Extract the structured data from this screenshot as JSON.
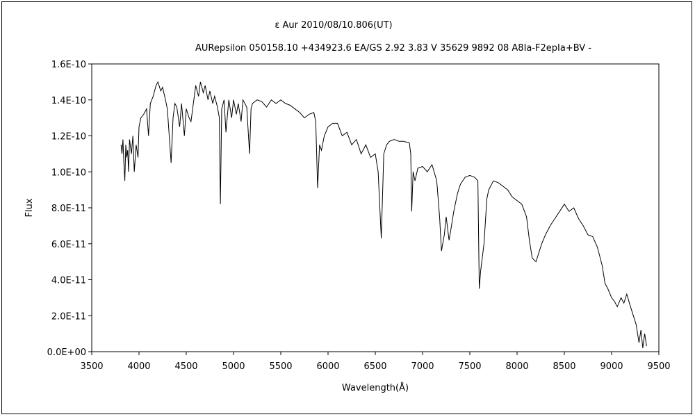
{
  "chart_data": {
    "type": "line",
    "title": "ε Aur   2010/08/10.806(UT)",
    "subtitle": "AURepsilon 050158.10 +434923.6 EA/GS 2.92 3.83 V 35629 9892 08 A8Ia-F2epIa+BV -",
    "xlabel": "Wavelength(Å)",
    "ylabel": "Flux",
    "xlim": [
      3500,
      9500
    ],
    "ylim": [
      0,
      1.6e-10
    ],
    "grid": false,
    "legend": "none",
    "line_color": "#000000",
    "x_ticks": [
      "3500",
      "4000",
      "4500",
      "5000",
      "5500",
      "6000",
      "6500",
      "7000",
      "7500",
      "8000",
      "8500",
      "9000",
      "9500"
    ],
    "y_ticks": [
      "0.0E+00",
      "2.0E-11",
      "4.0E-11",
      "6.0E-11",
      "8.0E-11",
      "1.0E-10",
      "1.2E-10",
      "1.4E-10",
      "1.6E-10"
    ],
    "series": [
      {
        "x": [
          3810,
          3820,
          3830,
          3840,
          3850,
          3860,
          3870,
          3880,
          3890,
          3900,
          3920,
          3935,
          3950,
          3970,
          3990,
          4000,
          4020,
          4050,
          4080,
          4101,
          4120,
          4150,
          4180,
          4200,
          4230,
          4250,
          4280,
          4300,
          4320,
          4340,
          4360,
          4380,
          4400,
          4430,
          4450,
          4480,
          4500,
          4530,
          4550,
          4580,
          4600,
          4630,
          4650,
          4680,
          4700,
          4730,
          4750,
          4780,
          4800,
          4830,
          4850,
          4861,
          4875,
          4900,
          4920,
          4950,
          4980,
          5000,
          5030,
          5050,
          5080,
          5100,
          5140,
          5170,
          5185,
          5200,
          5250,
          5300,
          5350,
          5400,
          5450,
          5500,
          5550,
          5600,
          5650,
          5700,
          5750,
          5800,
          5850,
          5870,
          5890,
          5910,
          5930,
          5960,
          6000,
          6050,
          6100,
          6150,
          6200,
          6250,
          6300,
          6350,
          6400,
          6450,
          6500,
          6530,
          6563,
          6590,
          6620,
          6650,
          6700,
          6750,
          6800,
          6860,
          6875,
          6885,
          6900,
          6920,
          6950,
          7000,
          7050,
          7100,
          7150,
          7180,
          7200,
          7230,
          7250,
          7280,
          7300,
          7330,
          7370,
          7400,
          7450,
          7500,
          7550,
          7585,
          7600,
          7615,
          7650,
          7680,
          7700,
          7750,
          7800,
          7850,
          7900,
          7950,
          8000,
          8050,
          8100,
          8130,
          8160,
          8200,
          8230,
          8260,
          8300,
          8350,
          8400,
          8450,
          8500,
          8550,
          8600,
          8650,
          8700,
          8750,
          8800,
          8850,
          8900,
          8930,
          8960,
          9000,
          9030,
          9060,
          9100,
          9130,
          9160,
          9200,
          9230,
          9260,
          9290,
          9310,
          9330,
          9350,
          9370
        ],
        "y": [
          1.15e-10,
          1.1e-10,
          1.18e-10,
          1.05e-10,
          9.5e-11,
          1.15e-10,
          1.08e-10,
          1.12e-10,
          1e-10,
          1.18e-10,
          1.1e-10,
          1.2e-10,
          1e-10,
          1.15e-10,
          1.08e-10,
          1.25e-10,
          1.3e-10,
          1.32e-10,
          1.35e-10,
          1.2e-10,
          1.38e-10,
          1.42e-10,
          1.48e-10,
          1.5e-10,
          1.45e-10,
          1.47e-10,
          1.4e-10,
          1.35e-10,
          1.2e-10,
          1.05e-10,
          1.3e-10,
          1.38e-10,
          1.36e-10,
          1.25e-10,
          1.38e-10,
          1.2e-10,
          1.35e-10,
          1.3e-10,
          1.28e-10,
          1.4e-10,
          1.48e-10,
          1.42e-10,
          1.5e-10,
          1.44e-10,
          1.48e-10,
          1.4e-10,
          1.45e-10,
          1.38e-10,
          1.42e-10,
          1.36e-10,
          1.3e-10,
          8.2e-11,
          1.35e-10,
          1.4e-10,
          1.22e-10,
          1.4e-10,
          1.3e-10,
          1.4e-10,
          1.32e-10,
          1.38e-10,
          1.28e-10,
          1.4e-10,
          1.36e-10,
          1.1e-10,
          1.35e-10,
          1.38e-10,
          1.4e-10,
          1.39e-10,
          1.36e-10,
          1.4e-10,
          1.38e-10,
          1.4e-10,
          1.38e-10,
          1.37e-10,
          1.35e-10,
          1.33e-10,
          1.3e-10,
          1.32e-10,
          1.33e-10,
          1.28e-10,
          9.1e-11,
          1.15e-10,
          1.12e-10,
          1.2e-10,
          1.25e-10,
          1.27e-10,
          1.27e-10,
          1.2e-10,
          1.22e-10,
          1.15e-10,
          1.18e-10,
          1.1e-10,
          1.15e-10,
          1.08e-10,
          1.1e-10,
          1e-10,
          6.3e-11,
          1.1e-10,
          1.15e-10,
          1.17e-10,
          1.18e-10,
          1.17e-10,
          1.17e-10,
          1.16e-10,
          1.1e-10,
          7.8e-11,
          1e-10,
          9.5e-11,
          1.02e-10,
          1.03e-10,
          1e-10,
          1.04e-10,
          9.5e-11,
          7.5e-11,
          5.6e-11,
          6.5e-11,
          7.5e-11,
          6.2e-11,
          6.8e-11,
          7.8e-11,
          8.8e-11,
          9.3e-11,
          9.7e-11,
          9.8e-11,
          9.7e-11,
          9.5e-11,
          3.5e-11,
          4.5e-11,
          6e-11,
          8.5e-11,
          9e-11,
          9.5e-11,
          9.4e-11,
          9.2e-11,
          9e-11,
          8.6e-11,
          8.4e-11,
          8.2e-11,
          7.5e-11,
          6.2e-11,
          5.2e-11,
          5e-11,
          5.5e-11,
          6e-11,
          6.5e-11,
          7e-11,
          7.4e-11,
          7.8e-11,
          8.2e-11,
          7.8e-11,
          8e-11,
          7.4e-11,
          7e-11,
          6.5e-11,
          6.4e-11,
          5.8e-11,
          4.8e-11,
          3.8e-11,
          3.5e-11,
          3e-11,
          2.8e-11,
          2.5e-11,
          3e-11,
          2.7e-11,
          3.2e-11,
          2.5e-11,
          2e-11,
          1.5e-11,
          5e-12,
          1.2e-11,
          2e-12,
          1e-11,
          3e-12
        ]
      }
    ]
  }
}
